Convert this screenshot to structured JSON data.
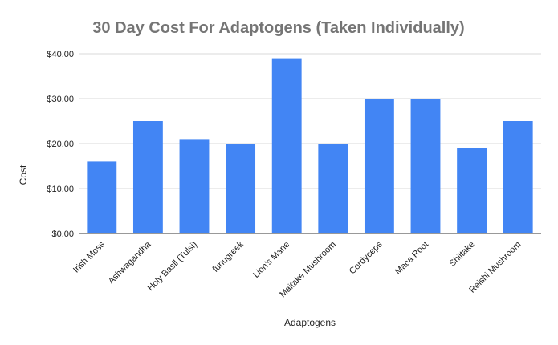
{
  "chart_data": {
    "type": "bar",
    "title": "30 Day Cost For Adaptogens (Taken Individually)",
    "xlabel": "Adaptogens",
    "ylabel": "Cost",
    "ylim": [
      0,
      40
    ],
    "yticks": [
      0,
      10,
      20,
      30,
      40
    ],
    "ytick_labels": [
      "$0.00",
      "$10.00",
      "$20.00",
      "$30.00",
      "$40.00"
    ],
    "grid": true,
    "legend": "none",
    "bar_color": "#4285f4",
    "categories": [
      "Irish Moss",
      "Ashwagandha",
      "Holy Basil (Tulsi)",
      "funugreek",
      "Lion's Mane",
      "Maitake Mushroom",
      "Cordyceps",
      "Maca Root",
      "Shiitake",
      "Reishi Mushroom"
    ],
    "values": [
      16,
      25,
      21,
      20,
      39,
      20,
      30,
      30,
      19,
      25
    ]
  }
}
